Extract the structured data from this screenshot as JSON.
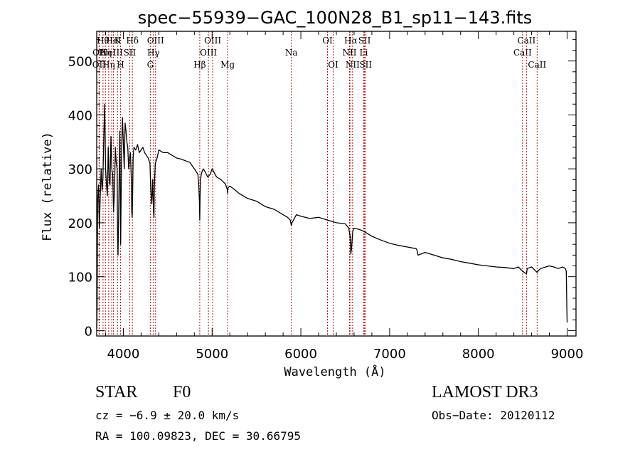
{
  "chart_data": {
    "type": "line",
    "title": "spec−55939−GAC_100N28_B1_sp11−143.fits",
    "xlabel": "Wavelength (Å)",
    "ylabel": "Flux (relative)",
    "xlim": [
      3700,
      9100
    ],
    "ylim": [
      -10,
      555
    ],
    "xticks": [
      4000,
      5000,
      6000,
      7000,
      8000,
      9000
    ],
    "xminor_step": 200,
    "yticks": [
      0,
      100,
      200,
      300,
      400,
      500
    ],
    "yminor_step": 20,
    "series": [
      {
        "name": "spectrum",
        "x": [
          3700,
          3705,
          3710,
          3720,
          3730,
          3740,
          3750,
          3760,
          3770,
          3780,
          3790,
          3800,
          3810,
          3820,
          3830,
          3840,
          3850,
          3860,
          3870,
          3880,
          3890,
          3900,
          3910,
          3920,
          3930,
          3935,
          3940,
          3950,
          3960,
          3965,
          3970,
          3980,
          3990,
          4000,
          4010,
          4020,
          4030,
          4040,
          4050,
          4060,
          4070,
          4080,
          4090,
          4095,
          4100,
          4105,
          4110,
          4120,
          4140,
          4160,
          4180,
          4200,
          4220,
          4240,
          4260,
          4280,
          4300,
          4310,
          4320,
          4330,
          4340,
          4345,
          4350,
          4360,
          4380,
          4400,
          4450,
          4500,
          4550,
          4600,
          4650,
          4700,
          4750,
          4800,
          4820,
          4840,
          4850,
          4857,
          4861,
          4865,
          4870,
          4880,
          4900,
          4920,
          4950,
          4980,
          5000,
          5050,
          5100,
          5150,
          5170,
          5175,
          5180,
          5200,
          5250,
          5300,
          5400,
          5500,
          5600,
          5700,
          5800,
          5850,
          5880,
          5893,
          5900,
          5950,
          6000,
          6100,
          6200,
          6300,
          6400,
          6500,
          6540,
          6555,
          6563,
          6570,
          6585,
          6600,
          6650,
          6700,
          6750,
          6800,
          6900,
          7000,
          7100,
          7200,
          7300,
          7310,
          7320,
          7400,
          7500,
          7600,
          7700,
          7800,
          7900,
          8000,
          8100,
          8200,
          8300,
          8400,
          8450,
          8500,
          8542,
          8550,
          8600,
          8662,
          8680,
          8700,
          8800,
          8850,
          8900,
          8950,
          8980,
          8990,
          8995,
          9000
        ],
        "values": [
          5,
          50,
          240,
          270,
          190,
          250,
          300,
          260,
          280,
          360,
          420,
          300,
          270,
          250,
          340,
          280,
          270,
          360,
          300,
          290,
          220,
          260,
          340,
          310,
          300,
          180,
          140,
          250,
          370,
          260,
          160,
          330,
          395,
          350,
          300,
          385,
          370,
          350,
          340,
          300,
          320,
          330,
          280,
          220,
          210,
          260,
          320,
          340,
          335,
          345,
          330,
          335,
          340,
          330,
          325,
          320,
          310,
          260,
          235,
          280,
          220,
          210,
          270,
          310,
          320,
          335,
          330,
          330,
          325,
          320,
          318,
          315,
          312,
          300,
          295,
          290,
          270,
          240,
          205,
          250,
          280,
          292,
          300,
          295,
          285,
          290,
          300,
          285,
          280,
          272,
          262,
          255,
          265,
          268,
          262,
          255,
          245,
          240,
          230,
          225,
          215,
          210,
          205,
          195,
          200,
          215,
          212,
          208,
          210,
          205,
          200,
          198,
          190,
          175,
          142,
          150,
          185,
          190,
          188,
          185,
          180,
          175,
          168,
          162,
          158,
          155,
          152,
          148,
          140,
          145,
          140,
          135,
          132,
          128,
          125,
          122,
          120,
          118,
          117,
          115,
          118,
          110,
          105,
          115,
          118,
          108,
          112,
          115,
          120,
          118,
          115,
          118,
          115,
          110,
          60,
          15
        ]
      }
    ],
    "lines": [
      {
        "wl": 3727,
        "row": 2,
        "label": "OII"
      },
      {
        "wl": 3730,
        "row": 1,
        "label": "OII"
      },
      {
        "wl": 3771,
        "row": 0,
        "label": "Hθ"
      },
      {
        "wl": 3798,
        "row": 1,
        "label": "Hη"
      },
      {
        "wl": 3835,
        "row": 2,
        "label": "Hη"
      },
      {
        "wl": 3869,
        "row": 1,
        "label": "NeIII"
      },
      {
        "wl": 3889,
        "row": 0,
        "label": "HeI"
      },
      {
        "wl": 3934,
        "row": 0,
        "label": "K"
      },
      {
        "wl": 3969,
        "row": 2,
        "label": "H"
      },
      {
        "wl": 4072,
        "row": 1,
        "label": "SII"
      },
      {
        "wl": 4102,
        "row": 0,
        "label": "Hδ"
      },
      {
        "wl": 4304,
        "row": 2,
        "label": "G"
      },
      {
        "wl": 4340,
        "row": 1,
        "label": "Hγ"
      },
      {
        "wl": 4363,
        "row": 0,
        "label": "OIII"
      },
      {
        "wl": 4861,
        "row": 2,
        "label": "Hβ"
      },
      {
        "wl": 4959,
        "row": 1,
        "label": "OIII"
      },
      {
        "wl": 5007,
        "row": 0,
        "label": "OIII"
      },
      {
        "wl": 5175,
        "row": 2,
        "label": "Mg"
      },
      {
        "wl": 5893,
        "row": 1,
        "label": "Na"
      },
      {
        "wl": 6300,
        "row": 0,
        "label": "OI"
      },
      {
        "wl": 6364,
        "row": 2,
        "label": "OI"
      },
      {
        "wl": 6548,
        "row": 1,
        "label": "NII"
      },
      {
        "wl": 6563,
        "row": 0,
        "label": "Hα"
      },
      {
        "wl": 6583,
        "row": 2,
        "label": "NII"
      },
      {
        "wl": 6708,
        "row": 1,
        "label": "Li"
      },
      {
        "wl": 6717,
        "row": 0,
        "label": "SII"
      },
      {
        "wl": 6731,
        "row": 2,
        "label": "SII"
      },
      {
        "wl": 8498,
        "row": 1,
        "label": "CaII"
      },
      {
        "wl": 8542,
        "row": 0,
        "label": "CaII"
      },
      {
        "wl": 8662,
        "row": 2,
        "label": "CaII"
      }
    ]
  },
  "info": {
    "class": "STAR",
    "subclass": "F0",
    "survey": "LAMOST DR3",
    "cz": "cz = −6.9 ± 20.0 km/s",
    "obs_date": "Obs−Date: 20120112",
    "coords": "RA = 100.09823, DEC =  30.66795"
  },
  "colors": {
    "line_marker": "#b01818",
    "spectrum": "#000000",
    "axes": "#000000"
  }
}
